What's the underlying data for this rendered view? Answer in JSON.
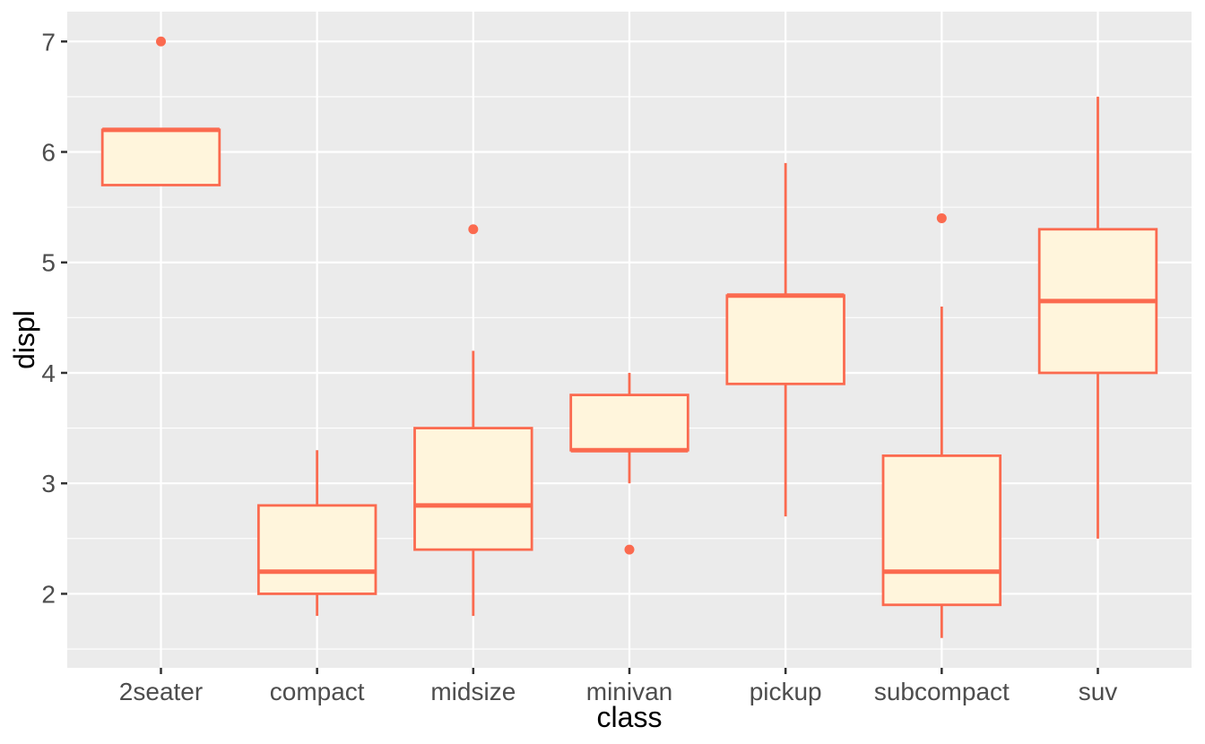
{
  "chart_data": {
    "type": "boxplot",
    "title": "",
    "xlabel": "class",
    "ylabel": "displ",
    "categories": [
      "2seater",
      "compact",
      "midsize",
      "minivan",
      "pickup",
      "subcompact",
      "suv"
    ],
    "series": [
      {
        "category": "2seater",
        "whisker_low": 5.7,
        "q1": 5.7,
        "median": 6.2,
        "q3": 6.2,
        "whisker_high": 6.2,
        "outliers": [
          7.0
        ]
      },
      {
        "category": "compact",
        "whisker_low": 1.8,
        "q1": 2.0,
        "median": 2.2,
        "q3": 2.8,
        "whisker_high": 3.3,
        "outliers": []
      },
      {
        "category": "midsize",
        "whisker_low": 1.8,
        "q1": 2.4,
        "median": 2.8,
        "q3": 3.5,
        "whisker_high": 4.2,
        "outliers": [
          5.3
        ]
      },
      {
        "category": "minivan",
        "whisker_low": 3.0,
        "q1": 3.3,
        "median": 3.3,
        "q3": 3.8,
        "whisker_high": 4.0,
        "outliers": [
          2.4
        ]
      },
      {
        "category": "pickup",
        "whisker_low": 2.7,
        "q1": 3.9,
        "median": 4.7,
        "q3": 4.7,
        "whisker_high": 5.9,
        "outliers": []
      },
      {
        "category": "subcompact",
        "whisker_low": 1.6,
        "q1": 1.9,
        "median": 2.2,
        "q3": 3.25,
        "whisker_high": 4.6,
        "outliers": [
          5.4
        ]
      },
      {
        "category": "suv",
        "whisker_low": 2.5,
        "q1": 4.0,
        "median": 4.65,
        "q3": 5.3,
        "whisker_high": 6.5,
        "outliers": []
      }
    ],
    "y_ticks": [
      2,
      3,
      4,
      5,
      6,
      7
    ],
    "y_minor_gridlines": [
      1.5,
      2.5,
      3.5,
      4.5,
      5.5,
      6.5
    ],
    "ylim": [
      1.33,
      7.27
    ],
    "grid": true,
    "legend": false,
    "colors": {
      "box_stroke": "#FB6A4F",
      "box_fill": "#FFF5DC",
      "outlier": "#FB6A4F",
      "panel_background": "#EBEBEB",
      "gridline": "#FFFFFF",
      "tick_mark": "#333333",
      "tick_label": "#4D4D4D",
      "axis_title": "#000000",
      "figure_background": "#FFFFFF"
    }
  }
}
